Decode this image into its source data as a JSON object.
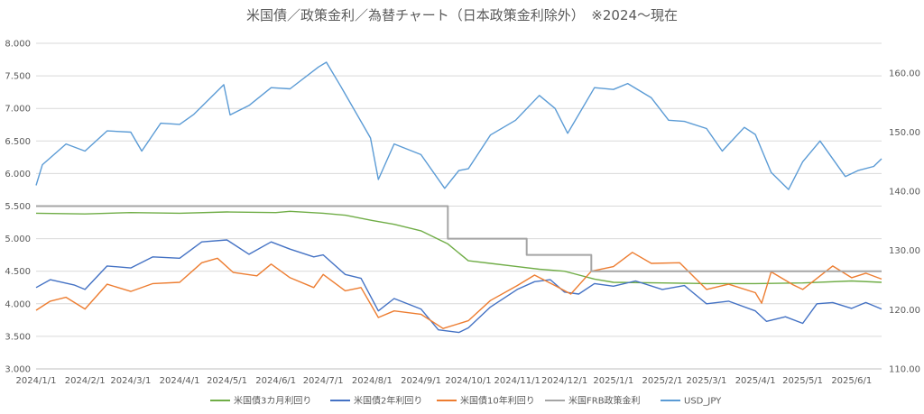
{
  "chart_data": {
    "type": "line",
    "title": "米国債／政策金利／為替チャート（日本政策金利除外）　※2024～現在",
    "x_ticks": [
      "2024/1/1",
      "2024/2/1",
      "2024/3/1",
      "2024/4/1",
      "2024/5/1",
      "2024/6/1",
      "2024/7/1",
      "2024/8/1",
      "2024/9/1",
      "2024/10/1",
      "2024/11/1",
      "2024/12/1",
      "2025/1/1",
      "2025/2/1",
      "2025/3/1",
      "2025/4/1",
      "2025/5/1",
      "2025/6/1"
    ],
    "x_range": [
      "2024-01-01",
      "2025-06-20"
    ],
    "y_left": {
      "range": [
        3.0,
        8.0
      ],
      "ticks": [
        "3.000",
        "3.500",
        "4.000",
        "4.500",
        "5.000",
        "5.500",
        "6.000",
        "6.500",
        "7.000",
        "7.500",
        "8.000"
      ]
    },
    "y_right": {
      "range": [
        110,
        165
      ],
      "ticks": [
        "110.00",
        "120.00",
        "130.00",
        "140.00",
        "150.00",
        "160.00"
      ]
    },
    "grid": true,
    "legend_position": "bottom",
    "series": [
      {
        "name": "米国債3カ月利回り",
        "axis": "left",
        "color": "#70ad47",
        "points": [
          [
            "2024-01-01",
            5.39
          ],
          [
            "2024-02-01",
            5.38
          ],
          [
            "2024-03-01",
            5.4
          ],
          [
            "2024-04-01",
            5.39
          ],
          [
            "2024-05-01",
            5.41
          ],
          [
            "2024-06-01",
            5.4
          ],
          [
            "2024-06-10",
            5.42
          ],
          [
            "2024-07-01",
            5.39
          ],
          [
            "2024-07-15",
            5.36
          ],
          [
            "2024-08-01",
            5.28
          ],
          [
            "2024-08-15",
            5.22
          ],
          [
            "2024-09-01",
            5.12
          ],
          [
            "2024-09-18",
            4.92
          ],
          [
            "2024-10-01",
            4.66
          ],
          [
            "2024-10-15",
            4.62
          ],
          [
            "2024-11-01",
            4.57
          ],
          [
            "2024-11-15",
            4.53
          ],
          [
            "2024-12-01",
            4.5
          ],
          [
            "2024-12-20",
            4.38
          ],
          [
            "2025-01-01",
            4.33
          ],
          [
            "2025-02-01",
            4.32
          ],
          [
            "2025-03-01",
            4.31
          ],
          [
            "2025-04-01",
            4.31
          ],
          [
            "2025-05-01",
            4.32
          ],
          [
            "2025-06-01",
            4.35
          ],
          [
            "2025-06-20",
            4.33
          ]
        ]
      },
      {
        "name": "米国債2年利回り",
        "axis": "left",
        "color": "#4472c4",
        "points": [
          [
            "2024-01-01",
            4.25
          ],
          [
            "2024-01-10",
            4.37
          ],
          [
            "2024-01-25",
            4.29
          ],
          [
            "2024-02-01",
            4.22
          ],
          [
            "2024-02-15",
            4.58
          ],
          [
            "2024-03-01",
            4.55
          ],
          [
            "2024-03-15",
            4.72
          ],
          [
            "2024-04-01",
            4.7
          ],
          [
            "2024-04-15",
            4.95
          ],
          [
            "2024-05-01",
            4.98
          ],
          [
            "2024-05-15",
            4.76
          ],
          [
            "2024-05-29",
            4.95
          ],
          [
            "2024-06-10",
            4.84
          ],
          [
            "2024-06-25",
            4.72
          ],
          [
            "2024-07-01",
            4.75
          ],
          [
            "2024-07-15",
            4.45
          ],
          [
            "2024-07-25",
            4.39
          ],
          [
            "2024-08-05",
            3.89
          ],
          [
            "2024-08-15",
            4.08
          ],
          [
            "2024-09-01",
            3.92
          ],
          [
            "2024-09-12",
            3.6
          ],
          [
            "2024-09-25",
            3.56
          ],
          [
            "2024-10-01",
            3.63
          ],
          [
            "2024-10-15",
            3.95
          ],
          [
            "2024-11-01",
            4.22
          ],
          [
            "2024-11-12",
            4.34
          ],
          [
            "2024-11-22",
            4.37
          ],
          [
            "2024-12-01",
            4.18
          ],
          [
            "2024-12-10",
            4.15
          ],
          [
            "2024-12-20",
            4.31
          ],
          [
            "2025-01-01",
            4.27
          ],
          [
            "2025-01-15",
            4.35
          ],
          [
            "2025-02-01",
            4.22
          ],
          [
            "2025-02-15",
            4.28
          ],
          [
            "2025-03-01",
            4.0
          ],
          [
            "2025-03-15",
            4.04
          ],
          [
            "2025-04-01",
            3.89
          ],
          [
            "2025-04-08",
            3.73
          ],
          [
            "2025-04-20",
            3.8
          ],
          [
            "2025-05-01",
            3.7
          ],
          [
            "2025-05-10",
            4.0
          ],
          [
            "2025-05-20",
            4.02
          ],
          [
            "2025-06-01",
            3.93
          ],
          [
            "2025-06-10",
            4.02
          ],
          [
            "2025-06-20",
            3.92
          ]
        ]
      },
      {
        "name": "米国債10年利回り",
        "axis": "left",
        "color": "#ed7d31",
        "points": [
          [
            "2024-01-01",
            3.9
          ],
          [
            "2024-01-10",
            4.04
          ],
          [
            "2024-01-20",
            4.1
          ],
          [
            "2024-02-01",
            3.92
          ],
          [
            "2024-02-15",
            4.3
          ],
          [
            "2024-03-01",
            4.19
          ],
          [
            "2024-03-15",
            4.31
          ],
          [
            "2024-04-01",
            4.33
          ],
          [
            "2024-04-15",
            4.63
          ],
          [
            "2024-04-25",
            4.7
          ],
          [
            "2024-05-05",
            4.48
          ],
          [
            "2024-05-20",
            4.43
          ],
          [
            "2024-05-29",
            4.61
          ],
          [
            "2024-06-10",
            4.4
          ],
          [
            "2024-06-25",
            4.25
          ],
          [
            "2024-07-01",
            4.45
          ],
          [
            "2024-07-15",
            4.2
          ],
          [
            "2024-07-25",
            4.25
          ],
          [
            "2024-08-05",
            3.79
          ],
          [
            "2024-08-15",
            3.89
          ],
          [
            "2024-09-01",
            3.84
          ],
          [
            "2024-09-15",
            3.62
          ],
          [
            "2024-10-01",
            3.74
          ],
          [
            "2024-10-15",
            4.05
          ],
          [
            "2024-11-01",
            4.28
          ],
          [
            "2024-11-12",
            4.44
          ],
          [
            "2024-11-25",
            4.28
          ],
          [
            "2024-12-05",
            4.15
          ],
          [
            "2024-12-18",
            4.5
          ],
          [
            "2025-01-01",
            4.57
          ],
          [
            "2025-01-13",
            4.79
          ],
          [
            "2025-01-25",
            4.62
          ],
          [
            "2025-02-12",
            4.63
          ],
          [
            "2025-03-01",
            4.22
          ],
          [
            "2025-03-15",
            4.3
          ],
          [
            "2025-04-01",
            4.17
          ],
          [
            "2025-04-05",
            4.01
          ],
          [
            "2025-04-11",
            4.49
          ],
          [
            "2025-04-25",
            4.29
          ],
          [
            "2025-05-01",
            4.22
          ],
          [
            "2025-05-20",
            4.58
          ],
          [
            "2025-06-01",
            4.4
          ],
          [
            "2025-06-10",
            4.47
          ],
          [
            "2025-06-20",
            4.38
          ]
        ]
      },
      {
        "name": "米国FRB政策金利",
        "axis": "left",
        "color": "#a5a5a5",
        "step": true,
        "points": [
          [
            "2024-01-01",
            5.5
          ],
          [
            "2024-09-18",
            5.0
          ],
          [
            "2024-11-07",
            4.75
          ],
          [
            "2024-12-18",
            4.5
          ],
          [
            "2025-06-20",
            4.5
          ]
        ]
      },
      {
        "name": "USD_JPY",
        "axis": "right",
        "color": "#5b9bd5",
        "points": [
          [
            "2024-01-01",
            141.0
          ],
          [
            "2024-01-05",
            144.5
          ],
          [
            "2024-01-20",
            148.0
          ],
          [
            "2024-02-01",
            146.8
          ],
          [
            "2024-02-15",
            150.2
          ],
          [
            "2024-03-01",
            150.0
          ],
          [
            "2024-03-08",
            146.8
          ],
          [
            "2024-03-20",
            151.5
          ],
          [
            "2024-04-01",
            151.3
          ],
          [
            "2024-04-10",
            153.0
          ],
          [
            "2024-04-29",
            158.0
          ],
          [
            "2024-05-03",
            152.9
          ],
          [
            "2024-05-15",
            154.5
          ],
          [
            "2024-05-29",
            157.5
          ],
          [
            "2024-06-10",
            157.3
          ],
          [
            "2024-06-28",
            161.0
          ],
          [
            "2024-07-03",
            161.8
          ],
          [
            "2024-07-12",
            157.8
          ],
          [
            "2024-07-31",
            149.0
          ],
          [
            "2024-08-05",
            142.0
          ],
          [
            "2024-08-15",
            148.0
          ],
          [
            "2024-09-01",
            146.2
          ],
          [
            "2024-09-16",
            140.5
          ],
          [
            "2024-09-25",
            143.5
          ],
          [
            "2024-10-01",
            143.8
          ],
          [
            "2024-10-15",
            149.5
          ],
          [
            "2024-10-31",
            152.0
          ],
          [
            "2024-11-15",
            156.2
          ],
          [
            "2024-11-25",
            154.0
          ],
          [
            "2024-12-03",
            149.8
          ],
          [
            "2024-12-20",
            157.5
          ],
          [
            "2025-01-01",
            157.2
          ],
          [
            "2025-01-10",
            158.2
          ],
          [
            "2025-01-25",
            155.8
          ],
          [
            "2025-02-05",
            152.0
          ],
          [
            "2025-02-15",
            151.8
          ],
          [
            "2025-03-01",
            150.6
          ],
          [
            "2025-03-11",
            146.8
          ],
          [
            "2025-03-25",
            150.8
          ],
          [
            "2025-04-01",
            149.6
          ],
          [
            "2025-04-11",
            143.2
          ],
          [
            "2025-04-22",
            140.3
          ],
          [
            "2025-05-01",
            145.0
          ],
          [
            "2025-05-12",
            148.5
          ],
          [
            "2025-05-28",
            142.5
          ],
          [
            "2025-06-05",
            143.5
          ],
          [
            "2025-06-15",
            144.2
          ],
          [
            "2025-06-20",
            145.5
          ]
        ]
      }
    ]
  }
}
